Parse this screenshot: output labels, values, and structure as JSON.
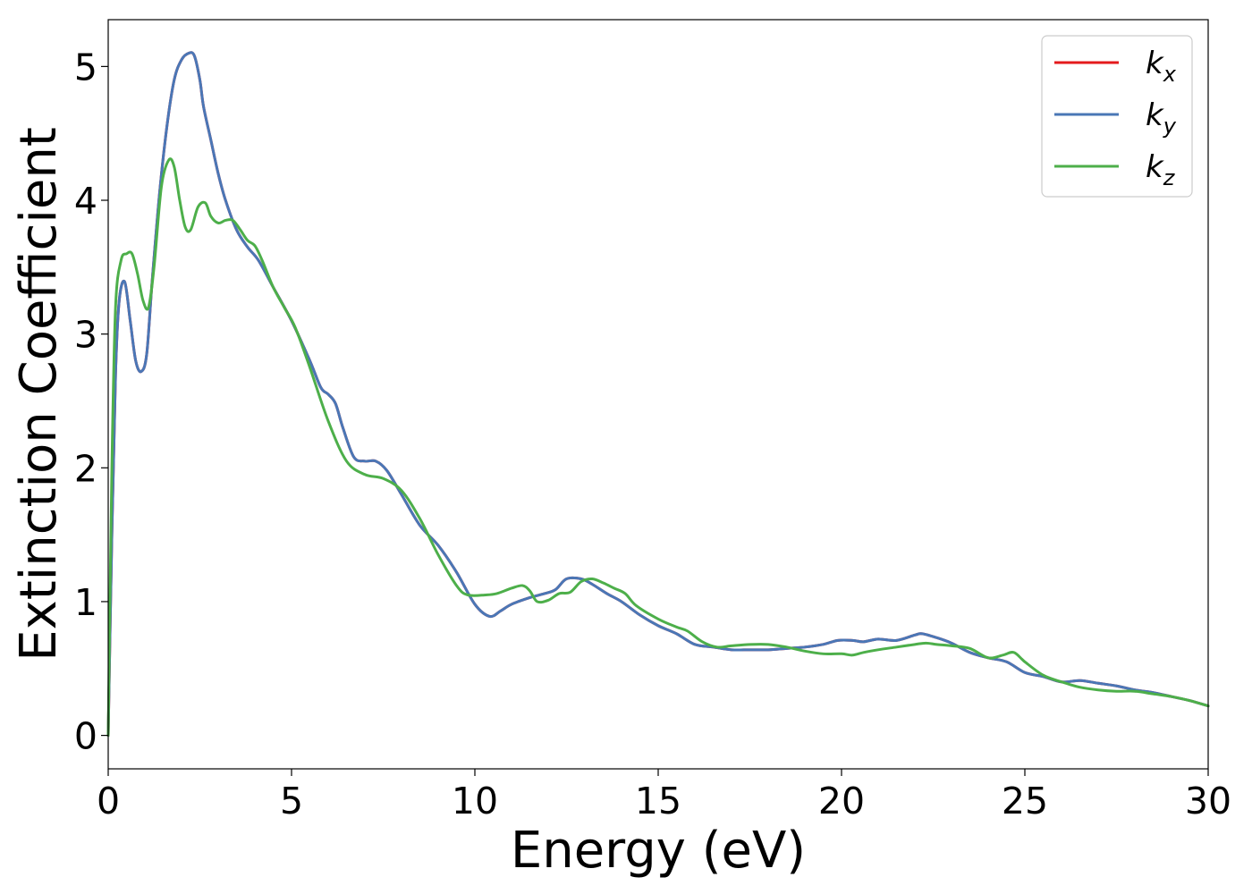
{
  "chart_data": {
    "type": "line",
    "title": "",
    "xlabel": "Energy (eV)",
    "ylabel": "Extinction Coefficient",
    "xlim": [
      0,
      30
    ],
    "ylim": [
      -0.25,
      5.35
    ],
    "xticks": [
      0,
      5,
      10,
      15,
      20,
      25,
      30
    ],
    "xtick_labels": [
      "0",
      "5",
      "10",
      "15",
      "20",
      "25",
      "30"
    ],
    "yticks": [
      0,
      1,
      2,
      3,
      4,
      5
    ],
    "ytick_labels": [
      "0",
      "1",
      "2",
      "3",
      "4",
      "5"
    ],
    "grid": false,
    "legend": "top-right",
    "series": [
      {
        "name": "k_x",
        "label_base": "k",
        "label_sub": "x",
        "color": "#e41a1c",
        "x": [
          0,
          0.1,
          0.2,
          0.3,
          0.45,
          0.6,
          0.75,
          0.9,
          1.05,
          1.2,
          1.4,
          1.6,
          1.8,
          2.0,
          2.2,
          2.35,
          2.5,
          2.6,
          2.8,
          3.0,
          3.2,
          3.5,
          3.8,
          4.1,
          4.5,
          5.0,
          5.5,
          5.8,
          6.0,
          6.2,
          6.4,
          6.7,
          7.0,
          7.3,
          7.6,
          8.0,
          8.5,
          9.0,
          9.5,
          10.0,
          10.4,
          10.7,
          11.0,
          11.5,
          11.9,
          12.2,
          12.5,
          12.9,
          13.2,
          13.6,
          14.0,
          14.5,
          15.0,
          15.5,
          16.0,
          16.5,
          17.0,
          17.5,
          18.0,
          18.5,
          19.0,
          19.5,
          19.9,
          20.3,
          20.6,
          21.0,
          21.5,
          22.0,
          22.2,
          22.6,
          23.0,
          23.5,
          24.0,
          24.5,
          25.0,
          25.5,
          26.0,
          26.5,
          27.0,
          27.5,
          28.0,
          28.5,
          29.0,
          29.5,
          30.0
        ],
        "y": [
          0.0,
          1.5,
          2.7,
          3.25,
          3.39,
          3.1,
          2.8,
          2.72,
          2.85,
          3.4,
          4.05,
          4.55,
          4.9,
          5.05,
          5.1,
          5.08,
          4.9,
          4.7,
          4.45,
          4.2,
          4.0,
          3.78,
          3.65,
          3.55,
          3.35,
          3.1,
          2.8,
          2.6,
          2.55,
          2.48,
          2.3,
          2.08,
          2.05,
          2.05,
          1.98,
          1.8,
          1.57,
          1.42,
          1.22,
          0.98,
          0.89,
          0.93,
          0.98,
          1.03,
          1.06,
          1.09,
          1.17,
          1.17,
          1.13,
          1.06,
          1.0,
          0.9,
          0.82,
          0.76,
          0.68,
          0.66,
          0.64,
          0.64,
          0.64,
          0.65,
          0.66,
          0.68,
          0.71,
          0.71,
          0.7,
          0.72,
          0.71,
          0.75,
          0.76,
          0.73,
          0.69,
          0.62,
          0.58,
          0.55,
          0.47,
          0.44,
          0.4,
          0.41,
          0.39,
          0.37,
          0.34,
          0.32,
          0.29,
          0.26,
          0.22
        ]
      },
      {
        "name": "k_y",
        "label_base": "k",
        "label_sub": "y",
        "color": "#4a77b6",
        "x": [
          0,
          0.1,
          0.2,
          0.3,
          0.45,
          0.6,
          0.75,
          0.9,
          1.05,
          1.2,
          1.4,
          1.6,
          1.8,
          2.0,
          2.2,
          2.35,
          2.5,
          2.6,
          2.8,
          3.0,
          3.2,
          3.5,
          3.8,
          4.1,
          4.5,
          5.0,
          5.5,
          5.8,
          6.0,
          6.2,
          6.4,
          6.7,
          7.0,
          7.3,
          7.6,
          8.0,
          8.5,
          9.0,
          9.5,
          10.0,
          10.4,
          10.7,
          11.0,
          11.5,
          11.9,
          12.2,
          12.5,
          12.9,
          13.2,
          13.6,
          14.0,
          14.5,
          15.0,
          15.5,
          16.0,
          16.5,
          17.0,
          17.5,
          18.0,
          18.5,
          19.0,
          19.5,
          19.9,
          20.3,
          20.6,
          21.0,
          21.5,
          22.0,
          22.2,
          22.6,
          23.0,
          23.5,
          24.0,
          24.5,
          25.0,
          25.5,
          26.0,
          26.5,
          27.0,
          27.5,
          28.0,
          28.5,
          29.0,
          29.5,
          30.0
        ],
        "y": [
          0.0,
          1.5,
          2.7,
          3.25,
          3.39,
          3.1,
          2.8,
          2.72,
          2.85,
          3.4,
          4.05,
          4.55,
          4.9,
          5.05,
          5.1,
          5.08,
          4.9,
          4.7,
          4.45,
          4.2,
          4.0,
          3.78,
          3.65,
          3.55,
          3.35,
          3.1,
          2.8,
          2.6,
          2.55,
          2.48,
          2.3,
          2.08,
          2.05,
          2.05,
          1.98,
          1.8,
          1.57,
          1.42,
          1.22,
          0.98,
          0.89,
          0.93,
          0.98,
          1.03,
          1.06,
          1.09,
          1.17,
          1.17,
          1.13,
          1.06,
          1.0,
          0.9,
          0.82,
          0.76,
          0.68,
          0.66,
          0.64,
          0.64,
          0.64,
          0.65,
          0.66,
          0.68,
          0.71,
          0.71,
          0.7,
          0.72,
          0.71,
          0.75,
          0.76,
          0.73,
          0.69,
          0.62,
          0.58,
          0.55,
          0.47,
          0.44,
          0.4,
          0.41,
          0.39,
          0.37,
          0.34,
          0.32,
          0.29,
          0.26,
          0.22
        ]
      },
      {
        "name": "k_z",
        "label_base": "k",
        "label_sub": "z",
        "color": "#4daf4a",
        "x": [
          0,
          0.1,
          0.2,
          0.35,
          0.5,
          0.65,
          0.8,
          0.95,
          1.1,
          1.25,
          1.45,
          1.65,
          1.8,
          1.95,
          2.1,
          2.25,
          2.45,
          2.65,
          2.8,
          3.0,
          3.2,
          3.4,
          3.6,
          3.8,
          4.0,
          4.2,
          4.5,
          4.8,
          5.1,
          5.5,
          6.0,
          6.5,
          7.0,
          7.5,
          8.0,
          8.5,
          9.0,
          9.5,
          9.8,
          10.3,
          10.6,
          11.0,
          11.3,
          11.5,
          11.7,
          12.0,
          12.3,
          12.6,
          12.9,
          13.2,
          13.5,
          13.8,
          14.1,
          14.4,
          15.0,
          15.5,
          15.8,
          16.2,
          16.6,
          17.0,
          17.5,
          18.0,
          18.5,
          19.0,
          19.5,
          20.0,
          20.3,
          20.6,
          21.0,
          21.5,
          22.0,
          22.3,
          22.6,
          23.0,
          23.5,
          24.0,
          24.4,
          24.7,
          25.0,
          25.5,
          26.0,
          26.5,
          27.0,
          27.5,
          28.0,
          28.5,
          29.0,
          29.5,
          30.0
        ],
        "y": [
          0.0,
          2.0,
          3.2,
          3.55,
          3.6,
          3.6,
          3.45,
          3.25,
          3.2,
          3.5,
          4.1,
          4.3,
          4.25,
          4.0,
          3.8,
          3.78,
          3.95,
          3.98,
          3.88,
          3.83,
          3.85,
          3.85,
          3.78,
          3.7,
          3.66,
          3.55,
          3.35,
          3.2,
          3.05,
          2.75,
          2.35,
          2.05,
          1.95,
          1.92,
          1.83,
          1.62,
          1.35,
          1.12,
          1.05,
          1.05,
          1.06,
          1.1,
          1.12,
          1.08,
          1.0,
          1.01,
          1.06,
          1.07,
          1.15,
          1.17,
          1.14,
          1.1,
          1.06,
          0.97,
          0.87,
          0.81,
          0.78,
          0.7,
          0.66,
          0.67,
          0.68,
          0.68,
          0.66,
          0.63,
          0.61,
          0.61,
          0.6,
          0.62,
          0.64,
          0.66,
          0.68,
          0.69,
          0.68,
          0.67,
          0.65,
          0.58,
          0.6,
          0.62,
          0.55,
          0.45,
          0.4,
          0.36,
          0.34,
          0.33,
          0.33,
          0.31,
          0.29,
          0.26,
          0.22
        ]
      }
    ]
  }
}
